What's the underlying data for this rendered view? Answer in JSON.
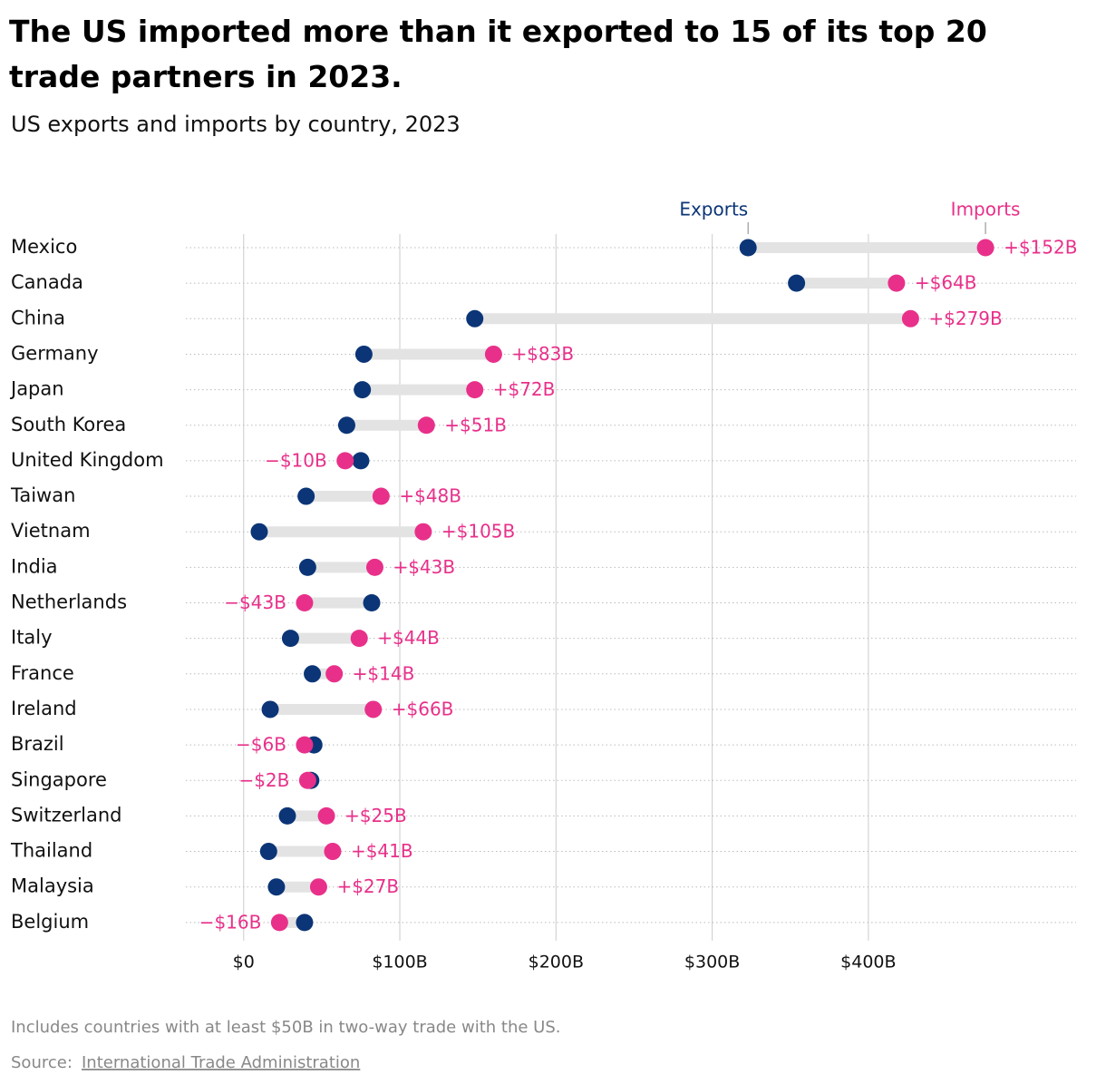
{
  "chart_data": {
    "type": "dumbbell",
    "title": "The US imported more than it exported to 15 of its top 20 trade partners in 2023.",
    "subtitle": "US exports and imports by country, 2023",
    "categories": [
      "Mexico",
      "Canada",
      "China",
      "Germany",
      "Japan",
      "South Korea",
      "United Kingdom",
      "Taiwan",
      "Vietnam",
      "India",
      "Netherlands",
      "Italy",
      "France",
      "Ireland",
      "Brazil",
      "Singapore",
      "Switzerland",
      "Thailand",
      "Malaysia",
      "Belgium"
    ],
    "series": [
      {
        "name": "Exports",
        "color": "#0b3577",
        "values": [
          323,
          354,
          148,
          77,
          76,
          66,
          75,
          40,
          10,
          41,
          82,
          30,
          44,
          17,
          45,
          43,
          28,
          16,
          21,
          39
        ]
      },
      {
        "name": "Imports",
        "color": "#e8308a",
        "values": [
          475,
          418,
          427,
          160,
          148,
          117,
          65,
          88,
          115,
          84,
          39,
          74,
          58,
          83,
          39,
          41,
          53,
          57,
          48,
          23
        ]
      }
    ],
    "differences": {
      "values": [
        152,
        64,
        279,
        83,
        72,
        51,
        -10,
        48,
        105,
        43,
        -43,
        44,
        14,
        66,
        -6,
        -2,
        25,
        41,
        27,
        -16
      ],
      "value_labels": [
        "+$152B",
        "+$64B",
        "+$279B",
        "+$83B",
        "+$72B",
        "+$51B",
        "−$10B",
        "+$48B",
        "+$105B",
        "+$43B",
        "−$43B",
        "+$44B",
        "+$14B",
        "+$66B",
        "−$6B",
        "−$2B",
        "+$25B",
        "+$41B",
        "+$27B",
        "−$16B"
      ]
    },
    "xlim": [
      -37,
      533
    ],
    "xticks": [
      {
        "value": 0,
        "label": "$0"
      },
      {
        "value": 100,
        "label": "$100B"
      },
      {
        "value": 200,
        "label": "$200B"
      },
      {
        "value": 300,
        "label": "$300B"
      },
      {
        "value": 400,
        "label": "$400B"
      }
    ],
    "grid": true,
    "note": "Includes countries with at least $50B in two-way trade with the US.",
    "source_label": "Source:",
    "source": "International Trade Administration"
  }
}
